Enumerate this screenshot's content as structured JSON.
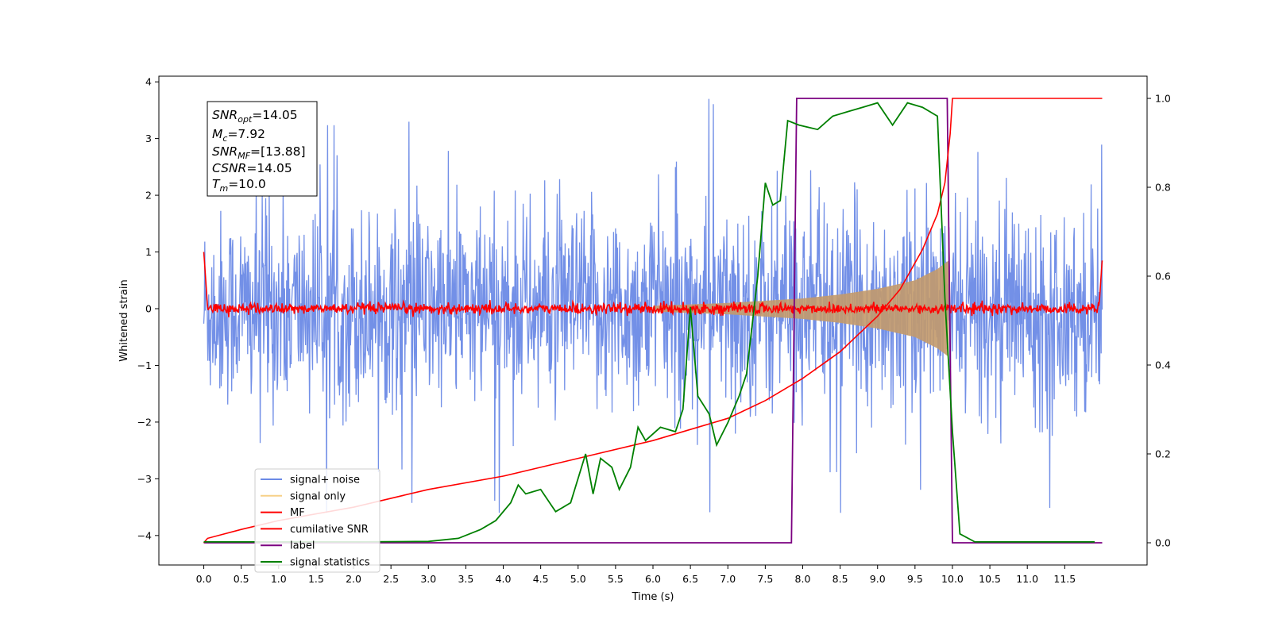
{
  "chart_data": {
    "type": "line",
    "xlabel": "Time (s)",
    "ylabel": "Whitened strain",
    "xlim": [
      -0.6,
      12.6
    ],
    "ylim": [
      -4.52,
      4.1
    ],
    "y2lim": [
      -0.05,
      1.05
    ],
    "x_ticks": [
      "0.0",
      "0.5",
      "1.0",
      "1.5",
      "2.0",
      "2.5",
      "3.0",
      "3.5",
      "4.0",
      "4.5",
      "5.0",
      "5.5",
      "6.0",
      "6.5",
      "7.0",
      "7.5",
      "8.0",
      "8.5",
      "9.0",
      "9.5",
      "10.0",
      "10.5",
      "11.0",
      "11.5"
    ],
    "y_ticks": [
      "4",
      "3",
      "2",
      "1",
      "0",
      "−1",
      "−2",
      "−3",
      "−4"
    ],
    "y2_ticks": [
      "1.0",
      "0.8",
      "0.6",
      "0.4",
      "0.2",
      "0.0"
    ],
    "info_box": {
      "snr_opt": {
        "main": "SNR",
        "sub": "opt",
        "value": "=14.05"
      },
      "mc": {
        "main": "M",
        "sub": "c",
        "value": "=7.92"
      },
      "snr_mf": {
        "main": "SNR",
        "sub": "MF",
        "value": "=[13.88]"
      },
      "csnr": {
        "main": "CSNR",
        "sub": "",
        "value": "=14.05"
      },
      "tm": {
        "main": "T",
        "sub": "m",
        "value": "=10.0"
      }
    },
    "legend_position": "lower-left",
    "legend": [
      {
        "label": "signal+ noise",
        "color": "#6b8ae6"
      },
      {
        "label": "signal only",
        "color": "#f5c56a"
      },
      {
        "label": "MF",
        "color": "#ff0000"
      },
      {
        "label": "cumilative SNR",
        "color": "#ff0000"
      },
      {
        "label": "label",
        "color": "#7b0080"
      },
      {
        "label": "signal statistics",
        "color": "#008000"
      }
    ],
    "series": [
      {
        "name": "signal+ noise",
        "axis": "left",
        "description_values": {
          "t_start": 0.0,
          "t_end": 12.0,
          "typical_amplitude": 1.6,
          "max": 3.7,
          "min": -3.6
        }
      },
      {
        "name": "signal only",
        "axis": "left",
        "envelope": {
          "t": [
            6.0,
            7.0,
            8.0,
            8.5,
            9.0,
            9.5,
            9.8,
            9.95
          ],
          "amp": [
            0.05,
            0.1,
            0.18,
            0.25,
            0.35,
            0.5,
            0.7,
            0.85
          ]
        }
      },
      {
        "name": "MF",
        "axis": "left",
        "description_values": {
          "typical_amplitude": 0.08,
          "edge_value": 1.0
        }
      },
      {
        "name": "cumilative SNR",
        "axis": "right",
        "x": [
          0.0,
          0.05,
          0.5,
          1.0,
          2.0,
          3.0,
          4.0,
          5.0,
          6.0,
          7.0,
          7.5,
          8.0,
          8.5,
          9.0,
          9.3,
          9.6,
          9.8,
          9.9,
          9.97,
          10.0,
          12.0
        ],
        "y": [
          0.0,
          0.01,
          0.03,
          0.05,
          0.08,
          0.12,
          0.15,
          0.19,
          0.23,
          0.28,
          0.32,
          0.37,
          0.43,
          0.51,
          0.57,
          0.66,
          0.74,
          0.81,
          0.92,
          1.0,
          1.0
        ]
      },
      {
        "name": "label",
        "axis": "right",
        "x": [
          0.0,
          7.85,
          7.92,
          9.93,
          10.0,
          12.0
        ],
        "y": [
          0.0,
          0.0,
          1.0,
          1.0,
          0.0,
          0.0
        ]
      },
      {
        "name": "signal statistics",
        "axis": "right",
        "x": [
          0.0,
          1.0,
          2.0,
          3.0,
          3.4,
          3.7,
          3.9,
          4.1,
          4.2,
          4.3,
          4.5,
          4.7,
          4.9,
          5.1,
          5.2,
          5.3,
          5.45,
          5.55,
          5.7,
          5.8,
          5.9,
          6.1,
          6.3,
          6.4,
          6.5,
          6.6,
          6.75,
          6.85,
          7.0,
          7.15,
          7.25,
          7.4,
          7.5,
          7.6,
          7.7,
          7.8,
          7.95,
          8.2,
          8.4,
          8.6,
          8.8,
          9.0,
          9.2,
          9.4,
          9.6,
          9.8,
          9.9,
          10.0,
          10.1,
          10.3,
          11.9
        ],
        "y": [
          0.002,
          0.002,
          0.002,
          0.003,
          0.01,
          0.03,
          0.05,
          0.09,
          0.13,
          0.11,
          0.12,
          0.07,
          0.09,
          0.2,
          0.11,
          0.19,
          0.17,
          0.12,
          0.17,
          0.26,
          0.23,
          0.26,
          0.25,
          0.3,
          0.53,
          0.33,
          0.29,
          0.22,
          0.27,
          0.33,
          0.38,
          0.6,
          0.81,
          0.76,
          0.77,
          0.95,
          0.94,
          0.93,
          0.96,
          0.97,
          0.98,
          0.99,
          0.94,
          0.99,
          0.98,
          0.96,
          0.55,
          0.25,
          0.02,
          0.002,
          0.002
        ]
      }
    ]
  }
}
